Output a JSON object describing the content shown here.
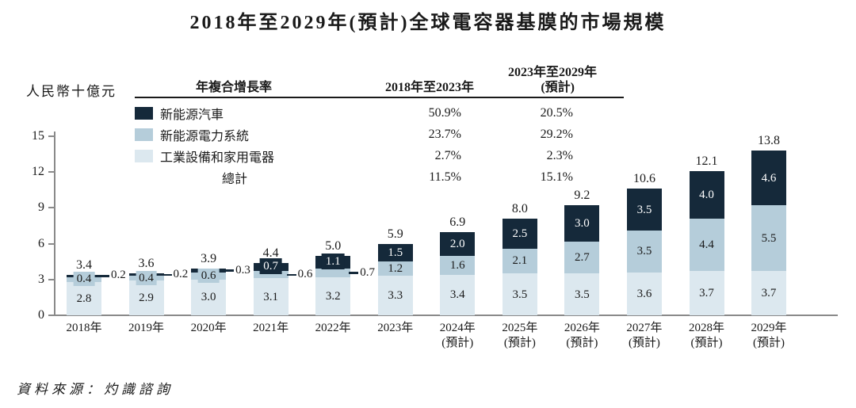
{
  "title": "2018年至2029年(預計)全球電容器基膜的市場規模",
  "y_axis_unit": "人民幣十億元",
  "source": "資料來源：灼識諮詢",
  "table_headers": {
    "growth": "年複合增長率",
    "period1": "2018年至2023年",
    "period2_line1": "2023年至2029年",
    "period2_line2": "(預計)"
  },
  "chart_data": {
    "type": "bar",
    "stacked": true,
    "title": "2018年至2029年(預計)全球電容器基膜的市場規模",
    "ylabel": "人民幣十億元",
    "ylim": [
      0,
      15
    ],
    "yticks": [
      0,
      3,
      6,
      9,
      12,
      15
    ],
    "grid": false,
    "legend_position": "top-left-inside",
    "categories": [
      "2018年",
      "2019年",
      "2020年",
      "2021年",
      "2022年",
      "2023年",
      "2024年",
      "2025年",
      "2026年",
      "2027年",
      "2028年",
      "2029年"
    ],
    "forecast_suffix": "(預計)",
    "forecast_from_index": 6,
    "series": [
      {
        "name": "新能源汽車",
        "color": "#15293a",
        "values": [
          0.2,
          0.2,
          0.3,
          0.7,
          1.1,
          1.5,
          2.0,
          2.5,
          3.0,
          3.5,
          4.0,
          4.6
        ],
        "cagr_2018_2023": "50.9%",
        "cagr_2023_2029": "20.5%"
      },
      {
        "name": "新能源電力系統",
        "color": "#b5cdda",
        "values": [
          0.4,
          0.4,
          0.6,
          0.6,
          0.7,
          1.2,
          1.6,
          2.1,
          2.7,
          3.5,
          4.4,
          5.5
        ],
        "cagr_2018_2023": "23.7%",
        "cagr_2023_2029": "29.2%"
      },
      {
        "name": "工業設備和家用電器",
        "color": "#dce8ef",
        "values": [
          2.8,
          2.9,
          3.0,
          3.1,
          3.2,
          3.3,
          3.4,
          3.5,
          3.5,
          3.6,
          3.7,
          3.7
        ],
        "cagr_2018_2023": "2.7%",
        "cagr_2023_2029": "2.3%"
      }
    ],
    "totals": {
      "name": "總計",
      "values": [
        3.4,
        3.6,
        3.9,
        4.4,
        5.0,
        5.9,
        6.9,
        8.0,
        9.2,
        10.6,
        12.1,
        13.8
      ],
      "cagr_2018_2023": "11.5%",
      "cagr_2023_2029": "15.1%"
    },
    "label_layout": {
      "dark_value_outside_year_indexes": [
        0,
        1,
        2
      ],
      "mid_value_outside_year_indexes": [
        3,
        4
      ]
    }
  }
}
